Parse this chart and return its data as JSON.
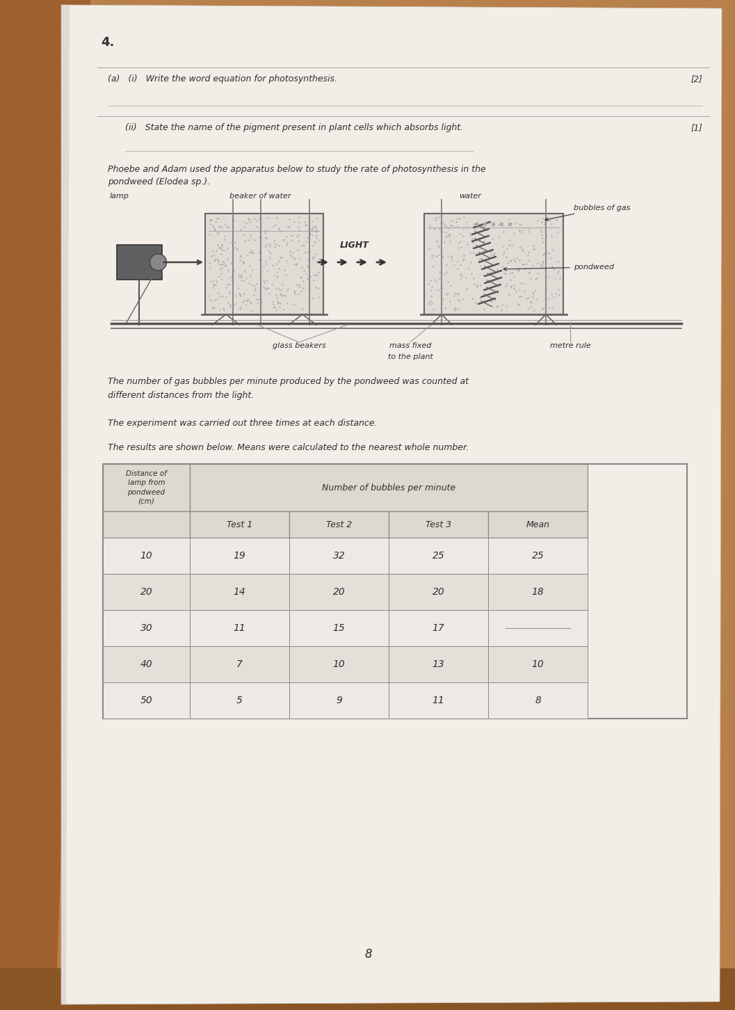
{
  "page_number": "4.",
  "wood_bg": "#b8804a",
  "paper_color": "#f2ede6",
  "paper_shadow": "#d0c8be",
  "question_a_i": "(a)   (i)   Write the word equation for photosynthesis.",
  "marks_a_i": "[2]",
  "question_a_ii": "(ii)   State the name of the pigment present in plant cells which absorbs light.",
  "marks_a_ii": "[1]",
  "intro_text1": "Phoebe and Adam used the apparatus below to study the rate of photosynthesis in the",
  "intro_text2": "pondweed (Elodea sp.).",
  "diagram_labels": {
    "lamp": "lamp",
    "beaker_of_water": "beaker of water",
    "water": "water",
    "light": "LIGHT",
    "bubbles": "bubbles of gas",
    "pondweed": "pondweed",
    "glass_beakers": "glass beakers",
    "mass_fixed": "mass fixed",
    "mass_fixed2": "to the plant",
    "metre_rule": "metre rule"
  },
  "para1": "The number of gas bubbles per minute produced by the pondweed was counted at",
  "para1b": "different distances from the light.",
  "para2": "The experiment was carried out three times at each distance.",
  "para3": "The results are shown below. Means were calculated to the nearest whole number.",
  "table_header_col1": "Distance of\nlamp from\npondweed\n(cm)",
  "table_header_bubbles": "Number of bubbles per minute",
  "table_subheaders": [
    "Test 1",
    "Test 2",
    "Test 3",
    "Mean"
  ],
  "table_data": [
    [
      "10",
      "19",
      "32",
      "25",
      "25"
    ],
    [
      "20",
      "14",
      "20",
      "20",
      "18"
    ],
    [
      "30",
      "11",
      "15",
      "17",
      ""
    ],
    [
      "40",
      "7",
      "10",
      "13",
      "10"
    ],
    [
      "50",
      "5",
      "9",
      "11",
      "8"
    ]
  ],
  "footer_number": "8",
  "text_color": "#2e2e2e",
  "text_color_light": "#4a4a4a",
  "line_color": "#999999",
  "table_border_color": "#888888",
  "header_fill": "#ddd8d0",
  "data_fill_light": "#ede9e4",
  "data_fill_dark": "#e4dfd9"
}
